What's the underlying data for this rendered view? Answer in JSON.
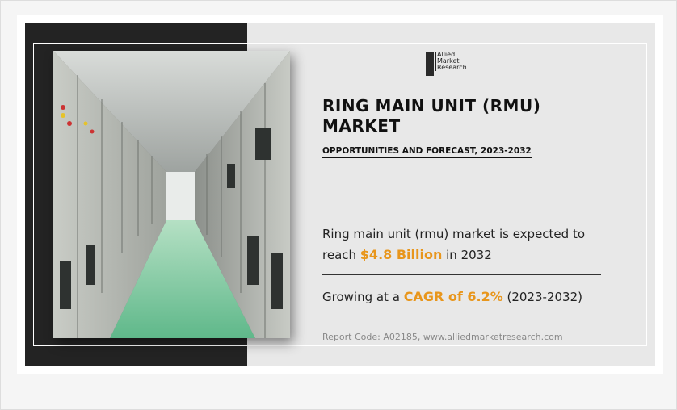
{
  "logo": {
    "lines": [
      "Allied",
      "Market",
      "Research"
    ]
  },
  "title": {
    "lines": [
      "RING MAIN UNIT (RMU)",
      "MARKET"
    ]
  },
  "subtitle": "OPPORTUNITIES AND FORECAST, 2023-2032",
  "market": {
    "before": "Ring main unit (rmu) market is expected to reach",
    "highlight": "$4.8 Billion",
    "after": "in 2032"
  },
  "growth": {
    "before": "Growing at a",
    "highlight": "CAGR of 6.2%",
    "after": "(2023-2032)"
  },
  "report_code": "Report Code: A02185, www.alliedmarketresearch.com"
}
